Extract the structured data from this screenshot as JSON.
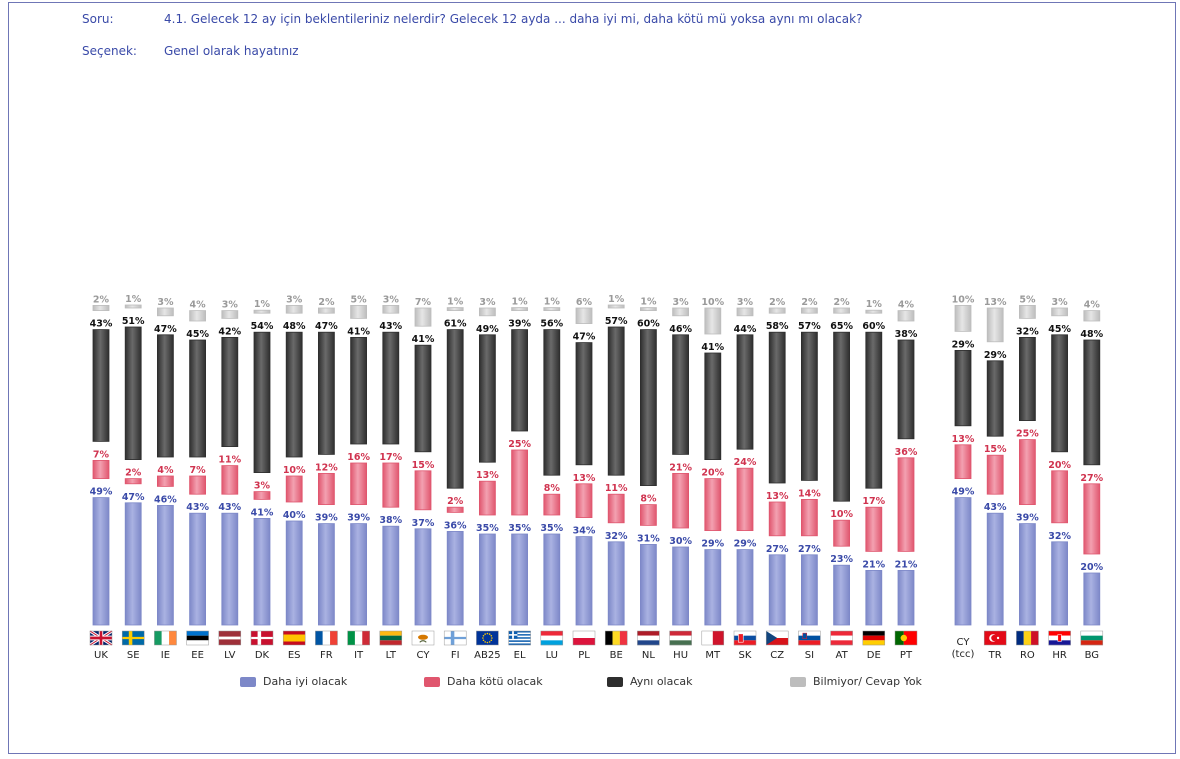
{
  "header": {
    "question_label": "Soru:",
    "question_text": "4.1. Gelecek 12 ay için beklentileriniz nelerdir? Gelecek 12 ayda  ... daha iyi mi, daha kötü mü yoksa aynı mı olacak?",
    "option_label": "Seçenek:",
    "option_text": "Genel olarak hayatınız"
  },
  "colors": {
    "better": "#7d88c8",
    "worse": "#e0566e",
    "same": "#2e2e2e",
    "dk": "#bdbdbd"
  },
  "legend": [
    {
      "key": "better",
      "label": "Daha iyi olacak"
    },
    {
      "key": "worse",
      "label": "Daha kötü olacak"
    },
    {
      "key": "same",
      "label": "Aynı olacak"
    },
    {
      "key": "dk",
      "label": "Bilmiyor/ Cevap Yok"
    }
  ],
  "chart_data": {
    "type": "bar",
    "stacking": "stacked-with-gaps",
    "categories": [
      "UK",
      "SE",
      "IE",
      "EE",
      "LV",
      "DK",
      "ES",
      "FR",
      "IT",
      "LT",
      "CY",
      "FI",
      "AB25",
      "EL",
      "LU",
      "PL",
      "BE",
      "NL",
      "HU",
      "MT",
      "SK",
      "CZ",
      "SI",
      "AT",
      "DE",
      "PT",
      "CY (tcc)",
      "TR",
      "RO",
      "HR",
      "BG"
    ],
    "series": [
      {
        "name": "Daha iyi olacak",
        "key": "better",
        "values": [
          49,
          47,
          46,
          43,
          43,
          41,
          40,
          39,
          39,
          38,
          37,
          36,
          35,
          35,
          35,
          34,
          32,
          31,
          30,
          29,
          29,
          27,
          27,
          23,
          21,
          21,
          49,
          43,
          39,
          32,
          20
        ]
      },
      {
        "name": "Daha kötü olacak",
        "key": "worse",
        "values": [
          7,
          2,
          4,
          7,
          11,
          3,
          10,
          12,
          16,
          17,
          15,
          2,
          13,
          25,
          8,
          13,
          11,
          8,
          21,
          20,
          24,
          13,
          14,
          10,
          17,
          36,
          13,
          15,
          25,
          20,
          27
        ]
      },
      {
        "name": "Aynı olacak",
        "key": "same",
        "values": [
          43,
          51,
          47,
          45,
          42,
          54,
          48,
          47,
          41,
          43,
          41,
          61,
          49,
          39,
          56,
          47,
          57,
          60,
          46,
          41,
          44,
          58,
          57,
          65,
          60,
          38,
          29,
          29,
          32,
          45,
          48
        ]
      },
      {
        "name": "Bilmiyor/ Cevap Yok",
        "key": "dk",
        "values": [
          2,
          1,
          3,
          4,
          3,
          1,
          3,
          2,
          5,
          3,
          7,
          1,
          3,
          1,
          1,
          6,
          1,
          1,
          3,
          10,
          3,
          2,
          2,
          2,
          1,
          4,
          10,
          13,
          5,
          3,
          4
        ]
      }
    ],
    "flags": [
      "gb",
      "se",
      "ie",
      "ee",
      "lv",
      "dk",
      "es",
      "fr",
      "it",
      "lt",
      "cy",
      "fi",
      "eu",
      "gr",
      "lu",
      "pl",
      "be",
      "nl",
      "hu",
      "mt",
      "sk",
      "cz",
      "si",
      "at",
      "de",
      "pt",
      "none",
      "tr",
      "ro",
      "hr",
      "bg"
    ],
    "group_break_after": "PT",
    "ylim": [
      0,
      100
    ]
  }
}
